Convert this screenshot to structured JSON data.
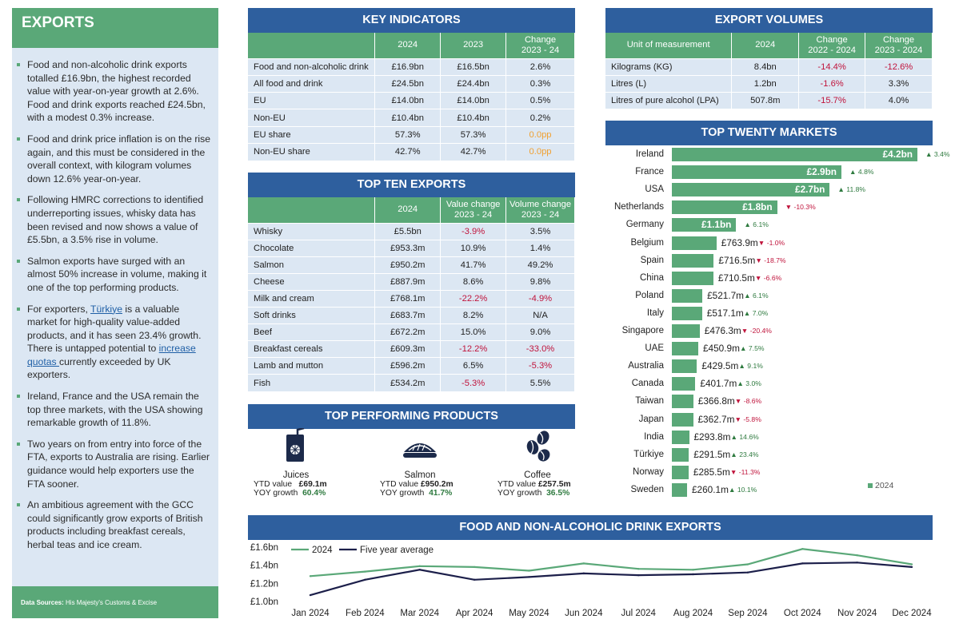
{
  "sidebar": {
    "title": "EXPORTS",
    "bullets": [
      "Food and non-alcoholic drink exports totalled £16.9bn, the highest recorded value with year-on-year growth at 2.6%. Food and drink exports reached £24.5bn, with a modest 0.3% increase.",
      "Food and drink price inflation is on the rise again, and this must be considered in the overall context, with kilogram volumes down 12.6% year-on-year.",
      "Following HMRC corrections to identified underreporting issues, whisky data has been revised and now shows a value of £5.5bn, a 3.5% rise in volume.",
      "Salmon exports have surged with an almost 50% increase in volume, making it one of the top performing products."
    ],
    "bullet5": {
      "pre": "For exporters, ",
      "link1": "Türkiye",
      "mid": " is a valuable market for high-quality value-added products, and it has seen 23.4% growth. There is untapped potential to ",
      "link2": "increase quotas ",
      "post": "currently exceeded by UK exporters."
    },
    "bullets_after": [
      "Ireland, France and the USA remain the top three markets, with the USA showing remarkable growth of 11.8%.",
      "Two years on from entry into force of the FTA, exports to Australia are rising. Earlier guidance would help exporters use the FTA sooner.",
      "An ambitious agreement with the GCC could significantly grow exports of British products including breakfast cereals, herbal teas and ice cream."
    ],
    "sources_label": "Data Sources:",
    "sources_text": " His Majesty's Customs & Excise"
  },
  "key_indicators": {
    "title": "KEY INDICATORS",
    "headers": [
      "",
      "2024",
      "2023",
      "Change",
      "2023 - 24"
    ],
    "rows": [
      [
        "Food and non-alcoholic drink",
        "£16.9bn",
        "£16.5bn",
        "2.6%",
        "pos"
      ],
      [
        "All food and drink",
        "£24.5bn",
        "£24.4bn",
        "0.3%",
        "pos"
      ],
      [
        "EU",
        "£14.0bn",
        "£14.0bn",
        "0.5%",
        "pos"
      ],
      [
        "Non-EU",
        "£10.4bn",
        "£10.4bn",
        "0.2%",
        "pos"
      ],
      [
        "EU share",
        "57.3%",
        "57.3%",
        "0.0pp",
        "zero"
      ],
      [
        "Non-EU share",
        "42.7%",
        "42.7%",
        "0.0pp",
        "zero"
      ]
    ]
  },
  "top_ten": {
    "title": "TOP TEN EXPORTS",
    "headers": [
      "",
      "2024",
      "Value change",
      "2023 - 24",
      "Volume change",
      "2023 - 24"
    ],
    "rows": [
      [
        "Whisky",
        "£5.5bn",
        "-3.9%",
        "3.5%"
      ],
      [
        "Chocolate",
        "£953.3m",
        "10.9%",
        "1.4%"
      ],
      [
        "Salmon",
        "£950.2m",
        "41.7%",
        "49.2%"
      ],
      [
        "Cheese",
        "£887.9m",
        "8.6%",
        "9.8%"
      ],
      [
        "Milk and cream",
        "£768.1m",
        "-22.2%",
        "-4.9%"
      ],
      [
        "Soft drinks",
        "£683.7m",
        "8.2%",
        "N/A"
      ],
      [
        "Beef",
        "£672.2m",
        "15.0%",
        "9.0%"
      ],
      [
        "Breakfast cereals",
        "£609.3m",
        "-12.2%",
        "-33.0%"
      ],
      [
        "Lamb and mutton",
        "£596.2m",
        "6.5%",
        "-5.3%"
      ],
      [
        "Fish",
        "£534.2m",
        "-5.3%",
        "5.5%"
      ]
    ]
  },
  "top_products": {
    "title": "TOP PERFORMING PRODUCTS",
    "ytd_label": "YTD value",
    "yoy_label": "YOY growth",
    "items": [
      {
        "name": "Juices",
        "icon": "juice-box-icon",
        "ytd": "£69.1m",
        "yoy": "60.4%"
      },
      {
        "name": "Salmon",
        "icon": "salmon-icon",
        "ytd": "£950.2m",
        "yoy": "41.7%"
      },
      {
        "name": "Coffee",
        "icon": "coffee-beans-icon",
        "ytd": "£257.5m",
        "yoy": "36.5%"
      }
    ]
  },
  "export_volumes": {
    "title": "EXPORT VOLUMES",
    "headers": [
      "Unit of measurement",
      "2024",
      "Change",
      "2022 - 2024",
      "Change",
      "2023 - 2024"
    ],
    "rows": [
      [
        "Kilograms (KG)",
        "8.4bn",
        "-14.4%",
        "-12.6%"
      ],
      [
        "Litres (L)",
        "1.2bn",
        "-1.6%",
        "3.3%"
      ],
      [
        "Litres of pure alcohol (LPA)",
        "507.8m",
        "-15.7%",
        "4.0%"
      ]
    ]
  },
  "top_markets": {
    "title": "TOP TWENTY MARKETS",
    "legend": "2024",
    "up_arrow": "▲",
    "down_arrow": "▼",
    "rows": [
      {
        "name": "Ireland",
        "label": "£4.2bn",
        "value": 4.2,
        "change": "3.4%",
        "dir": "up"
      },
      {
        "name": "France",
        "label": "£2.9bn",
        "value": 2.9,
        "change": "4.8%",
        "dir": "up"
      },
      {
        "name": "USA",
        "label": "£2.7bn",
        "value": 2.7,
        "change": "11.8%",
        "dir": "up"
      },
      {
        "name": "Netherlands",
        "label": "£1.8bn",
        "value": 1.8,
        "change": "-10.3%",
        "dir": "down"
      },
      {
        "name": "Germany",
        "label": "£1.1bn",
        "value": 1.1,
        "change": "6.1%",
        "dir": "up"
      },
      {
        "name": "Belgium",
        "label": "£763.9m",
        "value": 0.7639,
        "change": "-1.0%",
        "dir": "down"
      },
      {
        "name": "Spain",
        "label": "£716.5m",
        "value": 0.7165,
        "change": "-18.7%",
        "dir": "down"
      },
      {
        "name": "China",
        "label": "£710.5m",
        "value": 0.7105,
        "change": "-6.6%",
        "dir": "down"
      },
      {
        "name": "Poland",
        "label": "£521.7m",
        "value": 0.5217,
        "change": "6.1%",
        "dir": "up"
      },
      {
        "name": "Italy",
        "label": "£517.1m",
        "value": 0.5171,
        "change": "7.0%",
        "dir": "up"
      },
      {
        "name": "Singapore",
        "label": "£476.3m",
        "value": 0.4763,
        "change": "-20.4%",
        "dir": "down"
      },
      {
        "name": "UAE",
        "label": "£450.9m",
        "value": 0.4509,
        "change": "7.5%",
        "dir": "up"
      },
      {
        "name": "Australia",
        "label": "£429.5m",
        "value": 0.4295,
        "change": "9.1%",
        "dir": "up"
      },
      {
        "name": "Canada",
        "label": "£401.7m",
        "value": 0.4017,
        "change": "3.0%",
        "dir": "up"
      },
      {
        "name": "Taiwan",
        "label": "£366.8m",
        "value": 0.3668,
        "change": "-8.6%",
        "dir": "down"
      },
      {
        "name": "Japan",
        "label": "£362.7m",
        "value": 0.3627,
        "change": "-5.8%",
        "dir": "down"
      },
      {
        "name": "India",
        "label": "£293.8m",
        "value": 0.2938,
        "change": "14.6%",
        "dir": "up"
      },
      {
        "name": "Türkiye",
        "label": "£291.5m",
        "value": 0.2915,
        "change": "23.4%",
        "dir": "up"
      },
      {
        "name": "Norway",
        "label": "£285.5m",
        "value": 0.2855,
        "change": "-11.3%",
        "dir": "down"
      },
      {
        "name": "Sweden",
        "label": "£260.1m",
        "value": 0.2601,
        "change": "10.1%",
        "dir": "up"
      }
    ]
  },
  "colors": {
    "header_blue": "#2e5f9e",
    "green": "#5aa878",
    "light_blue": "#dce7f3",
    "negative": "#c0143c",
    "positive": "#2e7a3f",
    "neutral": "#f0a030",
    "dark_line": "#1c1f4a"
  },
  "chart_data": {
    "type": "line",
    "title": "FOOD AND NON-ALCOHOLIC DRINK EXPORTS",
    "categories": [
      "Jan 2024",
      "Feb 2024",
      "Mar 2024",
      "Apr 2024",
      "May 2024",
      "Jun 2024",
      "Jul 2024",
      "Aug 2024",
      "Sep 2024",
      "Oct 2024",
      "Nov 2024",
      "Dec 2024"
    ],
    "y_ticks": [
      "£1.0bn",
      "£1.2bn",
      "£1.4bn",
      "£1.6bn"
    ],
    "ylim": [
      1.0,
      1.6
    ],
    "legend_position": "top-left",
    "series": [
      {
        "name": "2024",
        "color": "#5aa878",
        "values": [
          1.28,
          1.33,
          1.39,
          1.38,
          1.34,
          1.42,
          1.36,
          1.35,
          1.41,
          1.58,
          1.51,
          1.41
        ]
      },
      {
        "name": "Five year average",
        "color": "#1c1f4a",
        "values": [
          1.07,
          1.24,
          1.35,
          1.24,
          1.27,
          1.31,
          1.29,
          1.3,
          1.32,
          1.42,
          1.43,
          1.38
        ]
      }
    ]
  }
}
